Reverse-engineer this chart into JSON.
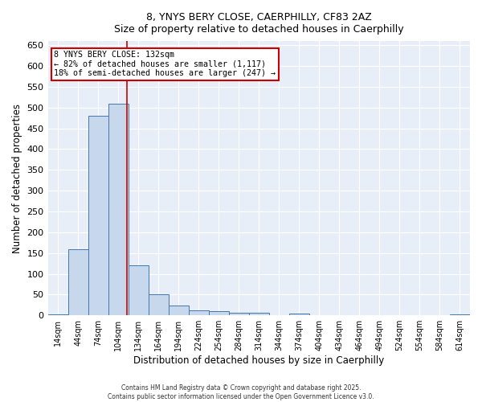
{
  "title_line1": "8, YNYS BERY CLOSE, CAERPHILLY, CF83 2AZ",
  "title_line2": "Size of property relative to detached houses in Caerphilly",
  "xlabel": "Distribution of detached houses by size in Caerphilly",
  "ylabel": "Number of detached properties",
  "bin_starts": [
    14,
    44,
    74,
    104,
    134,
    164,
    194,
    224,
    254,
    284,
    314,
    344,
    374,
    404,
    434,
    464,
    494,
    524,
    554,
    584,
    614
  ],
  "bin_width": 30,
  "bar_heights": [
    3,
    160,
    480,
    510,
    120,
    50,
    23,
    12,
    10,
    7,
    7,
    0,
    5,
    0,
    0,
    0,
    0,
    0,
    0,
    0,
    3
  ],
  "bar_facecolor": "#c8d8ec",
  "bar_edgecolor": "#4477aa",
  "vline_x": 132,
  "vline_color": "#cc0000",
  "ylim": [
    0,
    660
  ],
  "yticks": [
    0,
    50,
    100,
    150,
    200,
    250,
    300,
    350,
    400,
    450,
    500,
    550,
    600,
    650
  ],
  "annotation_text": "8 YNYS BERY CLOSE: 132sqm\n← 82% of detached houses are smaller (1,117)\n18% of semi-detached houses are larger (247) →",
  "annotation_box_color": "#cc0000",
  "background_color": "#e8eef8",
  "footer_line1": "Contains HM Land Registry data © Crown copyright and database right 2025.",
  "footer_line2": "Contains public sector information licensed under the Open Government Licence v3.0."
}
